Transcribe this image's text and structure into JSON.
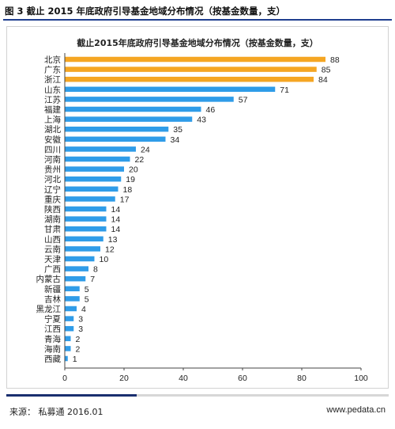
{
  "figure": {
    "caption": "图 3  截止 2015 年底政府引导基金地域分布情况（按基金数量，支）",
    "source": "来源：  私募通  2016.01",
    "website": "www.pedata.cn"
  },
  "colors": {
    "highlight": "#f5a623",
    "bar": "#2f9ce8",
    "axis": "#444444"
  },
  "chart_data": {
    "type": "bar",
    "orientation": "horizontal",
    "title": "截止2015年底政府引导基金地域分布情况（按基金数量，支）",
    "categories": [
      "北京",
      "广东",
      "浙江",
      "山东",
      "江苏",
      "福建",
      "上海",
      "湖北",
      "安徽",
      "四川",
      "河南",
      "贵州",
      "河北",
      "辽宁",
      "重庆",
      "陕西",
      "湖南",
      "甘肃",
      "山西",
      "云南",
      "天津",
      "广西",
      "内蒙古",
      "新疆",
      "吉林",
      "黑龙江",
      "宁夏",
      "江西",
      "青海",
      "海南",
      "西藏"
    ],
    "values": [
      88,
      85,
      84,
      71,
      57,
      46,
      43,
      35,
      34,
      24,
      22,
      20,
      19,
      18,
      17,
      14,
      14,
      14,
      13,
      12,
      10,
      8,
      7,
      5,
      5,
      4,
      3,
      3,
      2,
      2,
      1
    ],
    "highlighted_categories": [
      "北京",
      "广东",
      "浙江"
    ],
    "xlim": [
      0,
      100
    ],
    "xticks": [
      0,
      20,
      40,
      60,
      80,
      100
    ],
    "grid": false,
    "legend": "none"
  }
}
